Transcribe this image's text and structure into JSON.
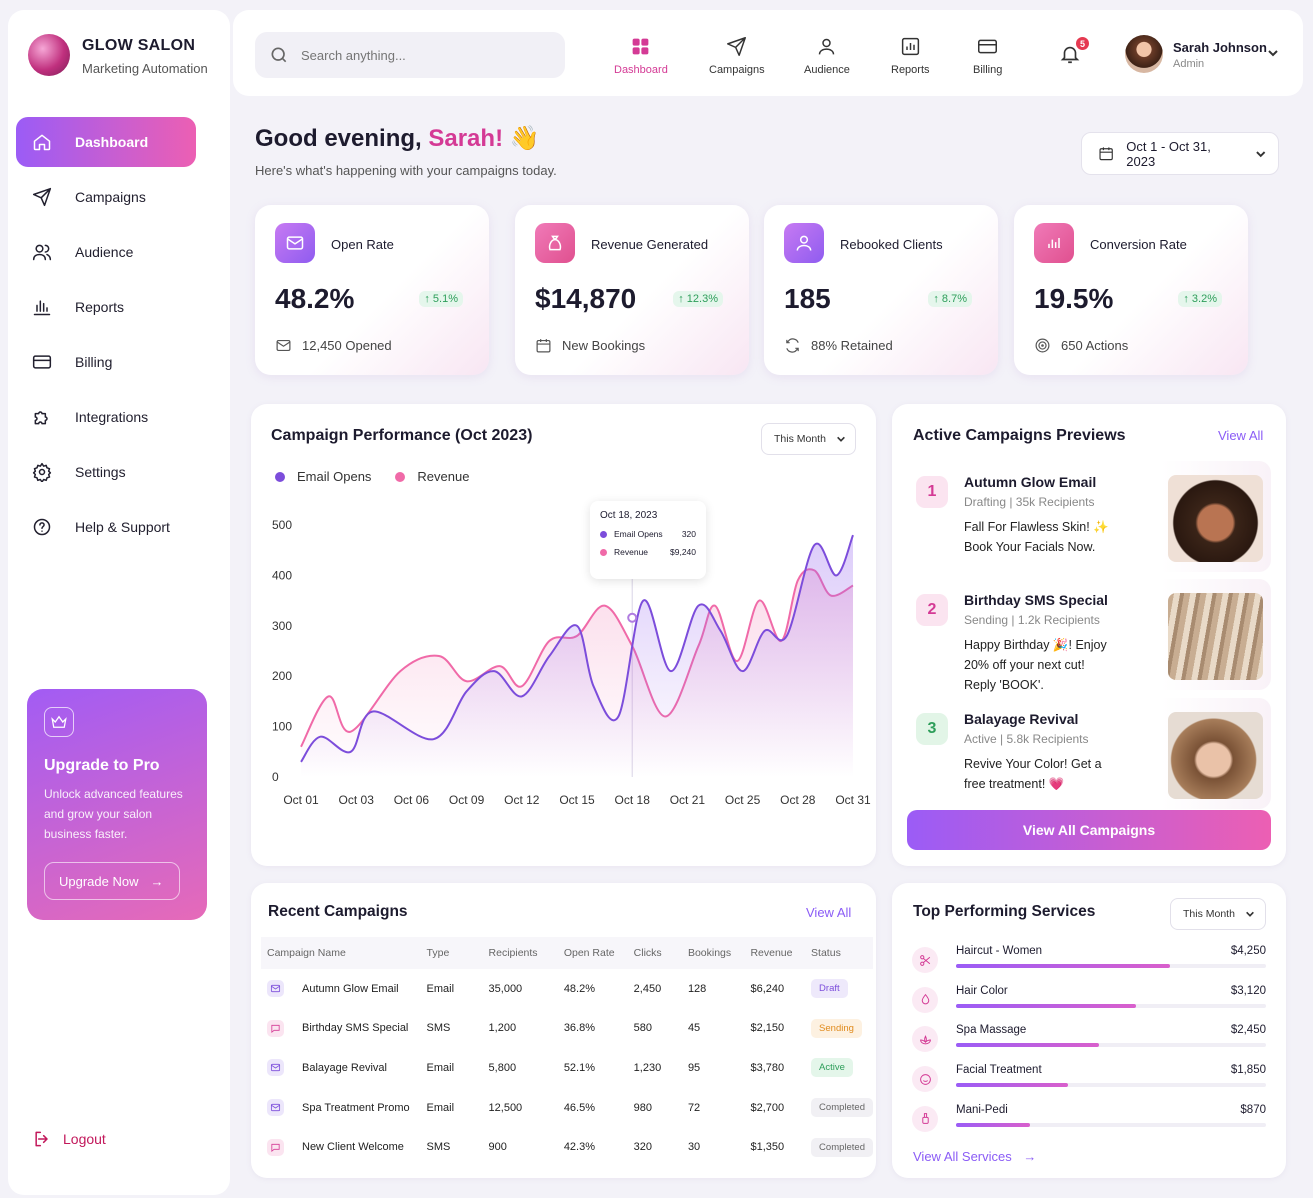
{
  "brand": {
    "name": "GLOW SALON",
    "subtitle": "Marketing Automation"
  },
  "sidebar": {
    "items": [
      {
        "label": "Dashboard",
        "icon": "home-icon",
        "active": true
      },
      {
        "label": "Campaigns",
        "icon": "send-icon"
      },
      {
        "label": "Audience",
        "icon": "users-icon"
      },
      {
        "label": "Reports",
        "icon": "bar-chart-icon"
      },
      {
        "label": "Billing",
        "icon": "credit-card-icon"
      },
      {
        "label": "Integrations",
        "icon": "puzzle-icon"
      },
      {
        "label": "Settings",
        "icon": "gear-icon"
      },
      {
        "label": "Help & Support",
        "icon": "help-circle-icon"
      }
    ],
    "upgrade": {
      "title": "Upgrade to Pro",
      "text": "Unlock advanced features and grow your salon business faster.",
      "button": "Upgrade Now"
    },
    "logout": "Logout"
  },
  "topbar": {
    "search_placeholder": "Search anything...",
    "nav": [
      "Dashboard",
      "Campaigns",
      "Audience",
      "Reports",
      "Billing"
    ],
    "notifications": "5",
    "user": {
      "name": "Sarah Johnson",
      "role": "Admin"
    }
  },
  "header": {
    "greeting": "Good evening,",
    "name": "Sarah!",
    "emoji": "👋",
    "subtitle": "Here's what's happening with your campaigns today.",
    "date_range": "Oct 1 - Oct 31, 2023"
  },
  "kpis": [
    {
      "label": "Open Rate",
      "value": "48.2%",
      "change": "5.1%",
      "sub": "12,450 Opened",
      "icon": "mail-icon"
    },
    {
      "label": "Revenue Generated",
      "value": "$14,870",
      "change": "12.3%",
      "sub": "New Bookings",
      "icon": "money-bag-icon"
    },
    {
      "label": "Rebooked Clients",
      "value": "185",
      "change": "8.7%",
      "sub": "88% Retained",
      "icon": "user-icon"
    },
    {
      "label": "Conversion Rate",
      "value": "19.5%",
      "change": "3.2%",
      "sub": "650 Actions",
      "icon": "chart-icon"
    }
  ],
  "performance": {
    "title": "Campaign Performance (Oct 2023)",
    "filter": "This Month",
    "tooltip": {
      "date": "Oct 18, 2023",
      "rows": [
        {
          "label": "Email Opens",
          "value": "320"
        },
        {
          "label": "Revenue",
          "value": "$9,240"
        }
      ]
    }
  },
  "chart_data": {
    "type": "area",
    "x": [
      "Oct 01",
      "Oct 03",
      "Oct 06",
      "Oct 09",
      "Oct 12",
      "Oct 15",
      "Oct 18",
      "Oct 21",
      "Oct 25",
      "Oct 28",
      "Oct 31"
    ],
    "y_ticks": [
      0,
      100,
      200,
      300,
      400,
      500
    ],
    "ylim": [
      0,
      500
    ],
    "series": [
      {
        "name": "Email Opens",
        "color": "#7c4ddb",
        "points": [
          [
            0,
            30
          ],
          [
            0.35,
            80
          ],
          [
            0.9,
            50
          ],
          [
            1.3,
            130
          ],
          [
            2.4,
            75
          ],
          [
            3.0,
            170
          ],
          [
            3.5,
            210
          ],
          [
            4.0,
            160
          ],
          [
            4.5,
            240
          ],
          [
            5.0,
            300
          ],
          [
            5.3,
            180
          ],
          [
            5.75,
            120
          ],
          [
            6.2,
            350
          ],
          [
            6.7,
            210
          ],
          [
            7.2,
            340
          ],
          [
            7.6,
            290
          ],
          [
            8.0,
            210
          ],
          [
            8.4,
            290
          ],
          [
            8.8,
            280
          ],
          [
            9.3,
            460
          ],
          [
            9.7,
            400
          ],
          [
            10.0,
            480
          ]
        ]
      },
      {
        "name": "Revenue",
        "color": "#f06aa8",
        "points": [
          [
            0,
            60
          ],
          [
            0.5,
            160
          ],
          [
            0.9,
            90
          ],
          [
            1.8,
            210
          ],
          [
            2.5,
            240
          ],
          [
            3.0,
            190
          ],
          [
            3.6,
            220
          ],
          [
            4.0,
            180
          ],
          [
            4.5,
            270
          ],
          [
            5.0,
            280
          ],
          [
            5.5,
            340
          ],
          [
            6.0,
            260
          ],
          [
            6.6,
            120
          ],
          [
            7.2,
            260
          ],
          [
            7.5,
            340
          ],
          [
            7.9,
            230
          ],
          [
            8.3,
            350
          ],
          [
            8.7,
            270
          ],
          [
            9.0,
            390
          ],
          [
            9.3,
            410
          ],
          [
            9.6,
            360
          ],
          [
            10.0,
            380
          ]
        ]
      }
    ]
  },
  "active_campaigns": {
    "title": "Active Campaigns Previews",
    "view_all": "View All",
    "items": [
      {
        "num": "1",
        "name": "Autumn Glow Email",
        "meta": "Drafting | 35k Recipients",
        "message": "Fall For Flawless Skin! ✨ Book Your Facials Now."
      },
      {
        "num": "2",
        "name": "Birthday SMS Special",
        "meta": "Sending | 1.2k Recipients",
        "message": "Happy Birthday 🎉! Enjoy 20% off your next cut! Reply 'BOOK'."
      },
      {
        "num": "3",
        "name": "Balayage Revival",
        "meta": "Active | 5.8k Recipients",
        "message": "Revive Your Color! Get a free treatment! 💗"
      }
    ],
    "button": "View All Campaigns"
  },
  "recent": {
    "title": "Recent Campaigns",
    "view_all": "View All",
    "columns": [
      "Campaign Name",
      "Type",
      "Recipients",
      "Open Rate",
      "Clicks",
      "Bookings",
      "Revenue",
      "Status"
    ],
    "rows": [
      {
        "name": "Autumn Glow Email",
        "type": "Email",
        "recipients": "35,000",
        "open": "48.2%",
        "clicks": "2,450",
        "bookings": "128",
        "revenue": "$6,240",
        "status": "Draft"
      },
      {
        "name": "Birthday SMS Special",
        "type": "SMS",
        "recipients": "1,200",
        "open": "36.8%",
        "clicks": "580",
        "bookings": "45",
        "revenue": "$2,150",
        "status": "Sending"
      },
      {
        "name": "Balayage Revival",
        "type": "Email",
        "recipients": "5,800",
        "open": "52.1%",
        "clicks": "1,230",
        "bookings": "95",
        "revenue": "$3,780",
        "status": "Active"
      },
      {
        "name": "Spa Treatment Promo",
        "type": "Email",
        "recipients": "12,500",
        "open": "46.5%",
        "clicks": "980",
        "bookings": "72",
        "revenue": "$2,700",
        "status": "Completed"
      },
      {
        "name": "New Client Welcome",
        "type": "SMS",
        "recipients": "900",
        "open": "42.3%",
        "clicks": "320",
        "bookings": "30",
        "revenue": "$1,350",
        "status": "Completed"
      }
    ]
  },
  "services": {
    "title": "Top Performing Services",
    "filter": "This Month",
    "items": [
      {
        "name": "Haircut - Women",
        "value": "$4,250",
        "share": 0.69,
        "icon": "scissors-icon"
      },
      {
        "name": "Hair Color",
        "value": "$3,120",
        "share": 0.58,
        "icon": "droplet-icon"
      },
      {
        "name": "Spa Massage",
        "value": "$2,450",
        "share": 0.46,
        "icon": "lotus-icon"
      },
      {
        "name": "Facial Treatment",
        "value": "$1,850",
        "share": 0.36,
        "icon": "smile-face-icon"
      },
      {
        "name": "Mani-Pedi",
        "value": "$870",
        "share": 0.24,
        "icon": "nail-polish-icon"
      }
    ],
    "view_all": "View All Services"
  }
}
